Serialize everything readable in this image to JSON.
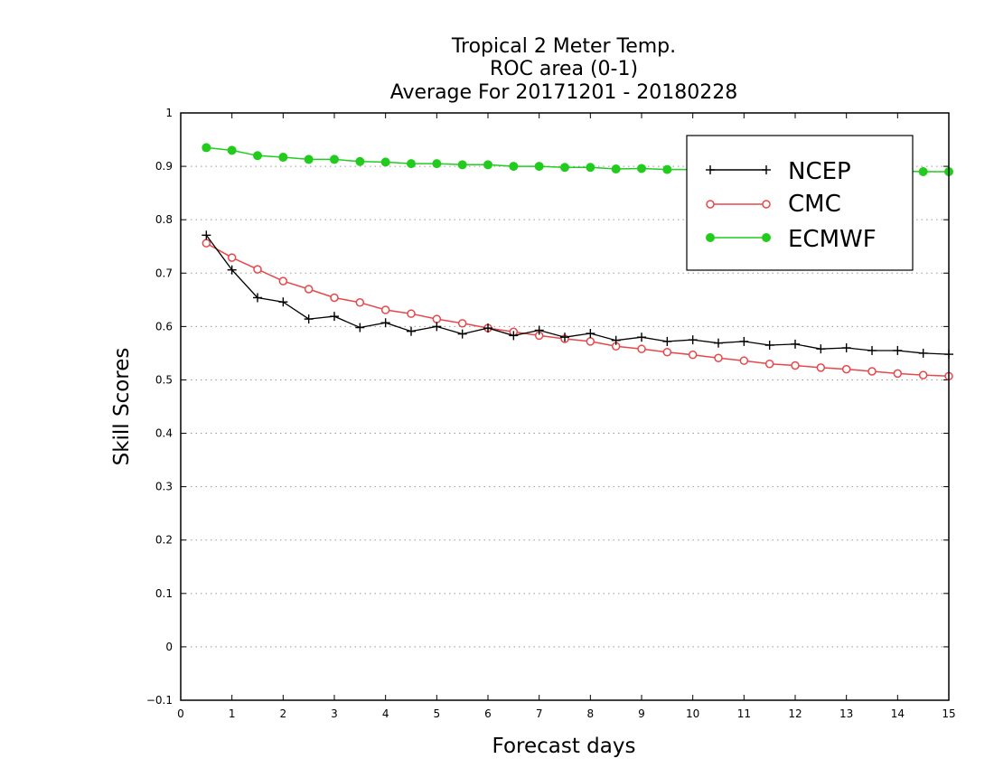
{
  "chart_data": {
    "type": "line",
    "title_lines": [
      "Tropical 2 Meter Temp.",
      "ROC area (0-1)",
      "Average For 20171201 - 20180228"
    ],
    "xlabel": "Forecast days",
    "ylabel": "Skill Scores",
    "xlim": [
      0,
      15
    ],
    "ylim": [
      -0.1,
      1
    ],
    "xticks": [
      "0",
      "1",
      "2",
      "3",
      "4",
      "5",
      "6",
      "7",
      "8",
      "9",
      "10",
      "11",
      "12",
      "13",
      "14",
      "15"
    ],
    "yticks": [
      "−0.1",
      "0",
      "0.1",
      "0.2",
      "0.3",
      "0.4",
      "0.5",
      "0.6",
      "0.7",
      "0.8",
      "0.9",
      "1"
    ],
    "grid": "horizontal dotted",
    "legend_position": "top-right",
    "x": [
      0.5,
      1.0,
      1.5,
      2.0,
      2.5,
      3.0,
      3.5,
      4.0,
      4.5,
      5.0,
      5.5,
      6.0,
      6.5,
      7.0,
      7.5,
      8.0,
      8.5,
      9.0,
      9.5,
      10.0,
      10.5,
      11.0,
      11.5,
      12.0,
      12.5,
      13.0,
      13.5,
      14.0,
      14.5,
      15.0
    ],
    "series": [
      {
        "name": "NCEP",
        "color": "#000000",
        "marker": "plus",
        "values": [
          0.771,
          0.706,
          0.654,
          0.646,
          0.614,
          0.619,
          0.598,
          0.607,
          0.591,
          0.6,
          0.586,
          0.597,
          0.583,
          0.593,
          0.58,
          0.587,
          0.574,
          0.58,
          0.572,
          0.575,
          0.569,
          0.572,
          0.565,
          0.567,
          0.558,
          0.56,
          0.555,
          0.555,
          0.55,
          0.548
        ]
      },
      {
        "name": "CMC",
        "color": "#e8474a",
        "marker": "open-circle",
        "values": [
          0.756,
          0.729,
          0.707,
          0.685,
          0.67,
          0.654,
          0.645,
          0.631,
          0.624,
          0.614,
          0.606,
          0.597,
          0.59,
          0.583,
          0.577,
          0.572,
          0.563,
          0.558,
          0.552,
          0.547,
          0.541,
          0.536,
          0.53,
          0.527,
          0.523,
          0.52,
          0.516,
          0.512,
          0.509,
          0.507
        ]
      },
      {
        "name": "ECMWF",
        "color": "#22cc1d",
        "marker": "filled-circle",
        "values": [
          0.935,
          0.93,
          0.92,
          0.917,
          0.913,
          0.913,
          0.909,
          0.908,
          0.905,
          0.905,
          0.903,
          0.903,
          0.9,
          0.9,
          0.898,
          0.898,
          0.895,
          0.896,
          0.894,
          0.894,
          0.893,
          0.893,
          0.892,
          0.892,
          0.892,
          0.892,
          0.891,
          0.891,
          0.89,
          0.89
        ]
      }
    ]
  }
}
